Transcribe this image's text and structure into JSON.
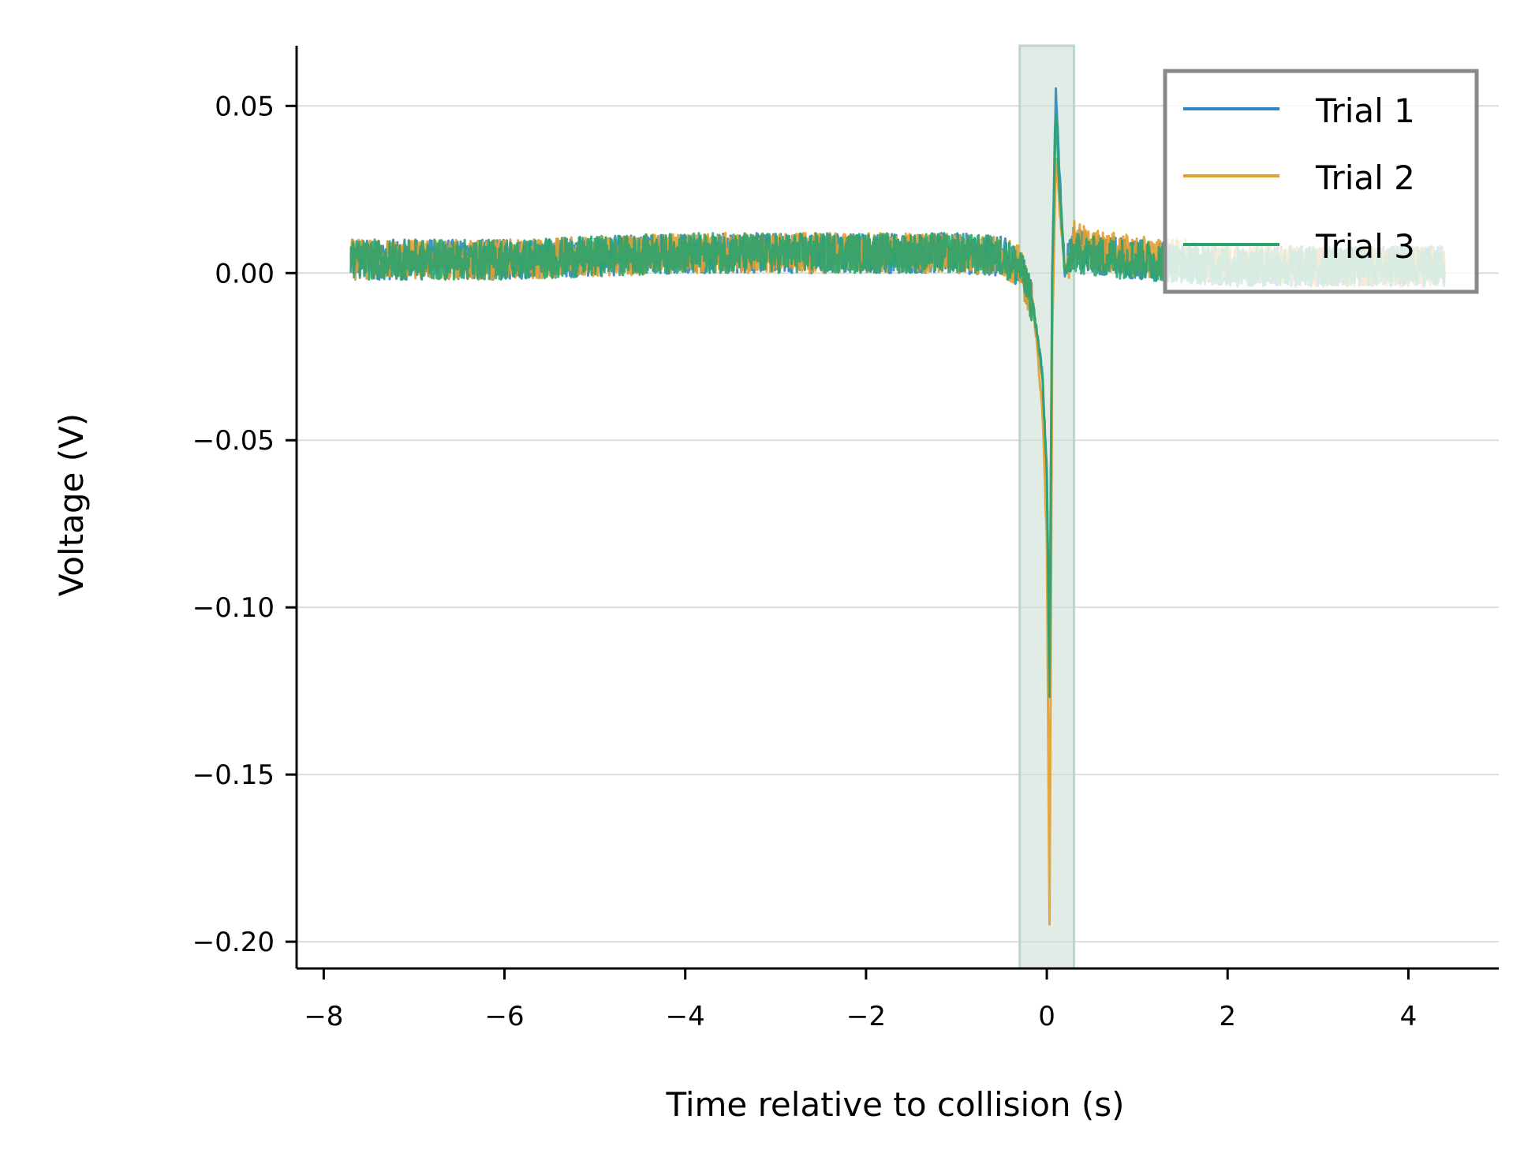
{
  "chart_data": {
    "type": "line",
    "title": "",
    "xlabel": "Time relative to collision (s)",
    "ylabel": "Voltage (V)",
    "xlim": [
      -8.3,
      5.0
    ],
    "ylim": [
      -0.208,
      0.068
    ],
    "xticks": [
      -8,
      -6,
      -4,
      -2,
      0,
      2,
      4
    ],
    "xtick_labels": [
      "−8",
      "−6",
      "−4",
      "−2",
      "0",
      "2",
      "4"
    ],
    "yticks": [
      0.05,
      0.0,
      -0.05,
      -0.1,
      -0.15,
      -0.2
    ],
    "ytick_labels": [
      "0.05",
      "0.00",
      "−0.05",
      "−0.10",
      "−0.15",
      "−0.20"
    ],
    "grid": "horizontal",
    "legend_position": "top-right",
    "highlight_span": {
      "x0": -0.3,
      "x1": 0.3,
      "color": "#cfe0d6"
    },
    "series": [
      {
        "name": "Trial 1",
        "color": "#2f86c0",
        "x": [
          -7.7,
          -7.0,
          -6.0,
          -5.0,
          -4.0,
          -3.0,
          -2.0,
          -1.0,
          -0.5,
          -0.3,
          -0.15,
          -0.05,
          0.0,
          0.03,
          0.06,
          0.1,
          0.14,
          0.2,
          0.3,
          0.5,
          1.0,
          2.0,
          3.0,
          4.4
        ],
        "y": [
          0.004,
          0.004,
          0.004,
          0.005,
          0.006,
          0.006,
          0.006,
          0.006,
          0.005,
          0.002,
          -0.01,
          -0.03,
          -0.06,
          -0.12,
          0.0,
          0.055,
          0.03,
          0.0,
          0.008,
          0.006,
          0.004,
          0.002,
          0.002,
          0.002
        ],
        "noise": 0.006
      },
      {
        "name": "Trial 2",
        "color": "#e39f2f",
        "x": [
          -7.7,
          -7.0,
          -6.0,
          -5.0,
          -4.0,
          -3.0,
          -2.0,
          -1.0,
          -0.5,
          -0.3,
          -0.15,
          -0.05,
          0.0,
          0.03,
          0.06,
          0.1,
          0.14,
          0.2,
          0.3,
          0.5,
          1.0,
          2.0,
          3.0,
          4.4
        ],
        "y": [
          0.004,
          0.004,
          0.004,
          0.005,
          0.006,
          0.006,
          0.006,
          0.006,
          0.005,
          0.002,
          -0.01,
          -0.04,
          -0.08,
          -0.195,
          -0.02,
          0.035,
          0.02,
          0.0,
          0.01,
          0.007,
          0.005,
          0.003,
          0.002,
          0.002
        ],
        "noise": 0.006
      },
      {
        "name": "Trial 3",
        "color": "#2ca36e",
        "x": [
          -7.7,
          -7.0,
          -6.0,
          -5.0,
          -4.0,
          -3.0,
          -2.0,
          -1.0,
          -0.5,
          -0.3,
          -0.15,
          -0.05,
          0.0,
          0.03,
          0.06,
          0.1,
          0.14,
          0.2,
          0.3,
          0.5,
          1.0,
          2.0,
          3.0,
          4.4
        ],
        "y": [
          0.004,
          0.004,
          0.004,
          0.005,
          0.006,
          0.006,
          0.006,
          0.006,
          0.005,
          0.002,
          -0.01,
          -0.03,
          -0.06,
          -0.127,
          0.0,
          0.048,
          0.025,
          0.0,
          0.006,
          0.005,
          0.004,
          0.002,
          0.002,
          0.002
        ],
        "noise": 0.006
      }
    ]
  }
}
